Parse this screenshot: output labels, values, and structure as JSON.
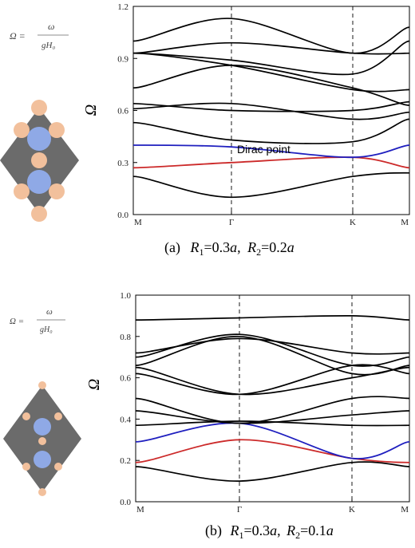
{
  "formula": {
    "lhs": "Ω =",
    "numerator": "ω",
    "denominator": "gH₀"
  },
  "colors": {
    "black": "#000000",
    "blue": "#1f1fbf",
    "red": "#cc2a2a",
    "cell_bg": "#6b6b6b",
    "large_circle": "#8fa9e6",
    "small_circle": "#f2c09c"
  },
  "chart_data": [
    {
      "type": "line",
      "panel": "a",
      "ylabel": "Ω",
      "ylim": [
        0,
        1.2
      ],
      "yticks": [
        "0.0",
        "0.3",
        "0.6",
        "0.9",
        "1.2"
      ],
      "x": [
        "M",
        "Γ",
        "K",
        "M"
      ],
      "caption": {
        "prefix": "(a)",
        "r1": "R",
        "r1sub": "1",
        "r1val": "=0.3",
        "a1": "a",
        "sep": ",",
        "r2": "R",
        "r2sub": "2",
        "r2val": "=0.2",
        "a2": "a"
      },
      "annotation": "Dirac point",
      "series": [
        {
          "color": "black",
          "values": [
            0.22,
            0.1,
            0.22,
            0.24
          ]
        },
        {
          "color": "red",
          "values": [
            0.27,
            0.3,
            0.33,
            0.27
          ]
        },
        {
          "color": "blue",
          "values": [
            0.4,
            0.39,
            0.33,
            0.4
          ]
        },
        {
          "color": "black",
          "values": [
            0.53,
            0.43,
            0.42,
            0.55
          ]
        },
        {
          "color": "black",
          "values": [
            0.61,
            0.64,
            0.55,
            0.59
          ]
        },
        {
          "color": "black",
          "values": [
            0.64,
            0.6,
            0.6,
            0.65
          ]
        },
        {
          "color": "black",
          "values": [
            0.73,
            0.86,
            0.73,
            0.63
          ]
        },
        {
          "color": "black",
          "values": [
            0.93,
            0.86,
            0.72,
            0.72
          ]
        },
        {
          "color": "black",
          "values": [
            0.93,
            0.99,
            0.93,
            0.93
          ]
        },
        {
          "color": "black",
          "values": [
            0.93,
            0.89,
            0.81,
            1.0
          ]
        },
        {
          "color": "black",
          "values": [
            1.0,
            1.13,
            0.93,
            1.08
          ]
        }
      ]
    },
    {
      "type": "line",
      "panel": "b",
      "ylabel": "Ω",
      "ylim": [
        0,
        1.0
      ],
      "yticks": [
        "0.0",
        "0.2",
        "0.4",
        "0.6",
        "0.8",
        "1.0"
      ],
      "x": [
        "M",
        "Γ",
        "K",
        "M"
      ],
      "caption": {
        "prefix": "(b)",
        "r1": "R",
        "r1sub": "1",
        "r1val": "=0.3",
        "a1": "a",
        "sep": ",",
        "r2": "R",
        "r2sub": "2",
        "r2val": "=0.1",
        "a2": "a"
      },
      "series": [
        {
          "color": "black",
          "values": [
            0.17,
            0.1,
            0.19,
            0.17
          ]
        },
        {
          "color": "red",
          "values": [
            0.19,
            0.3,
            0.21,
            0.19
          ]
        },
        {
          "color": "blue",
          "values": [
            0.29,
            0.38,
            0.21,
            0.29
          ]
        },
        {
          "color": "black",
          "values": [
            0.37,
            0.39,
            0.37,
            0.37
          ]
        },
        {
          "color": "black",
          "values": [
            0.44,
            0.38,
            0.42,
            0.44
          ]
        },
        {
          "color": "black",
          "values": [
            0.5,
            0.38,
            0.5,
            0.5
          ]
        },
        {
          "color": "black",
          "values": [
            0.62,
            0.52,
            0.66,
            0.62
          ]
        },
        {
          "color": "black",
          "values": [
            0.65,
            0.52,
            0.6,
            0.65
          ]
        },
        {
          "color": "black",
          "values": [
            0.66,
            0.8,
            0.62,
            0.66
          ]
        },
        {
          "color": "black",
          "values": [
            0.7,
            0.81,
            0.66,
            0.7
          ]
        },
        {
          "color": "black",
          "values": [
            0.72,
            0.79,
            0.72,
            0.72
          ]
        },
        {
          "color": "black",
          "values": [
            0.88,
            0.89,
            0.9,
            0.88
          ]
        }
      ]
    }
  ]
}
